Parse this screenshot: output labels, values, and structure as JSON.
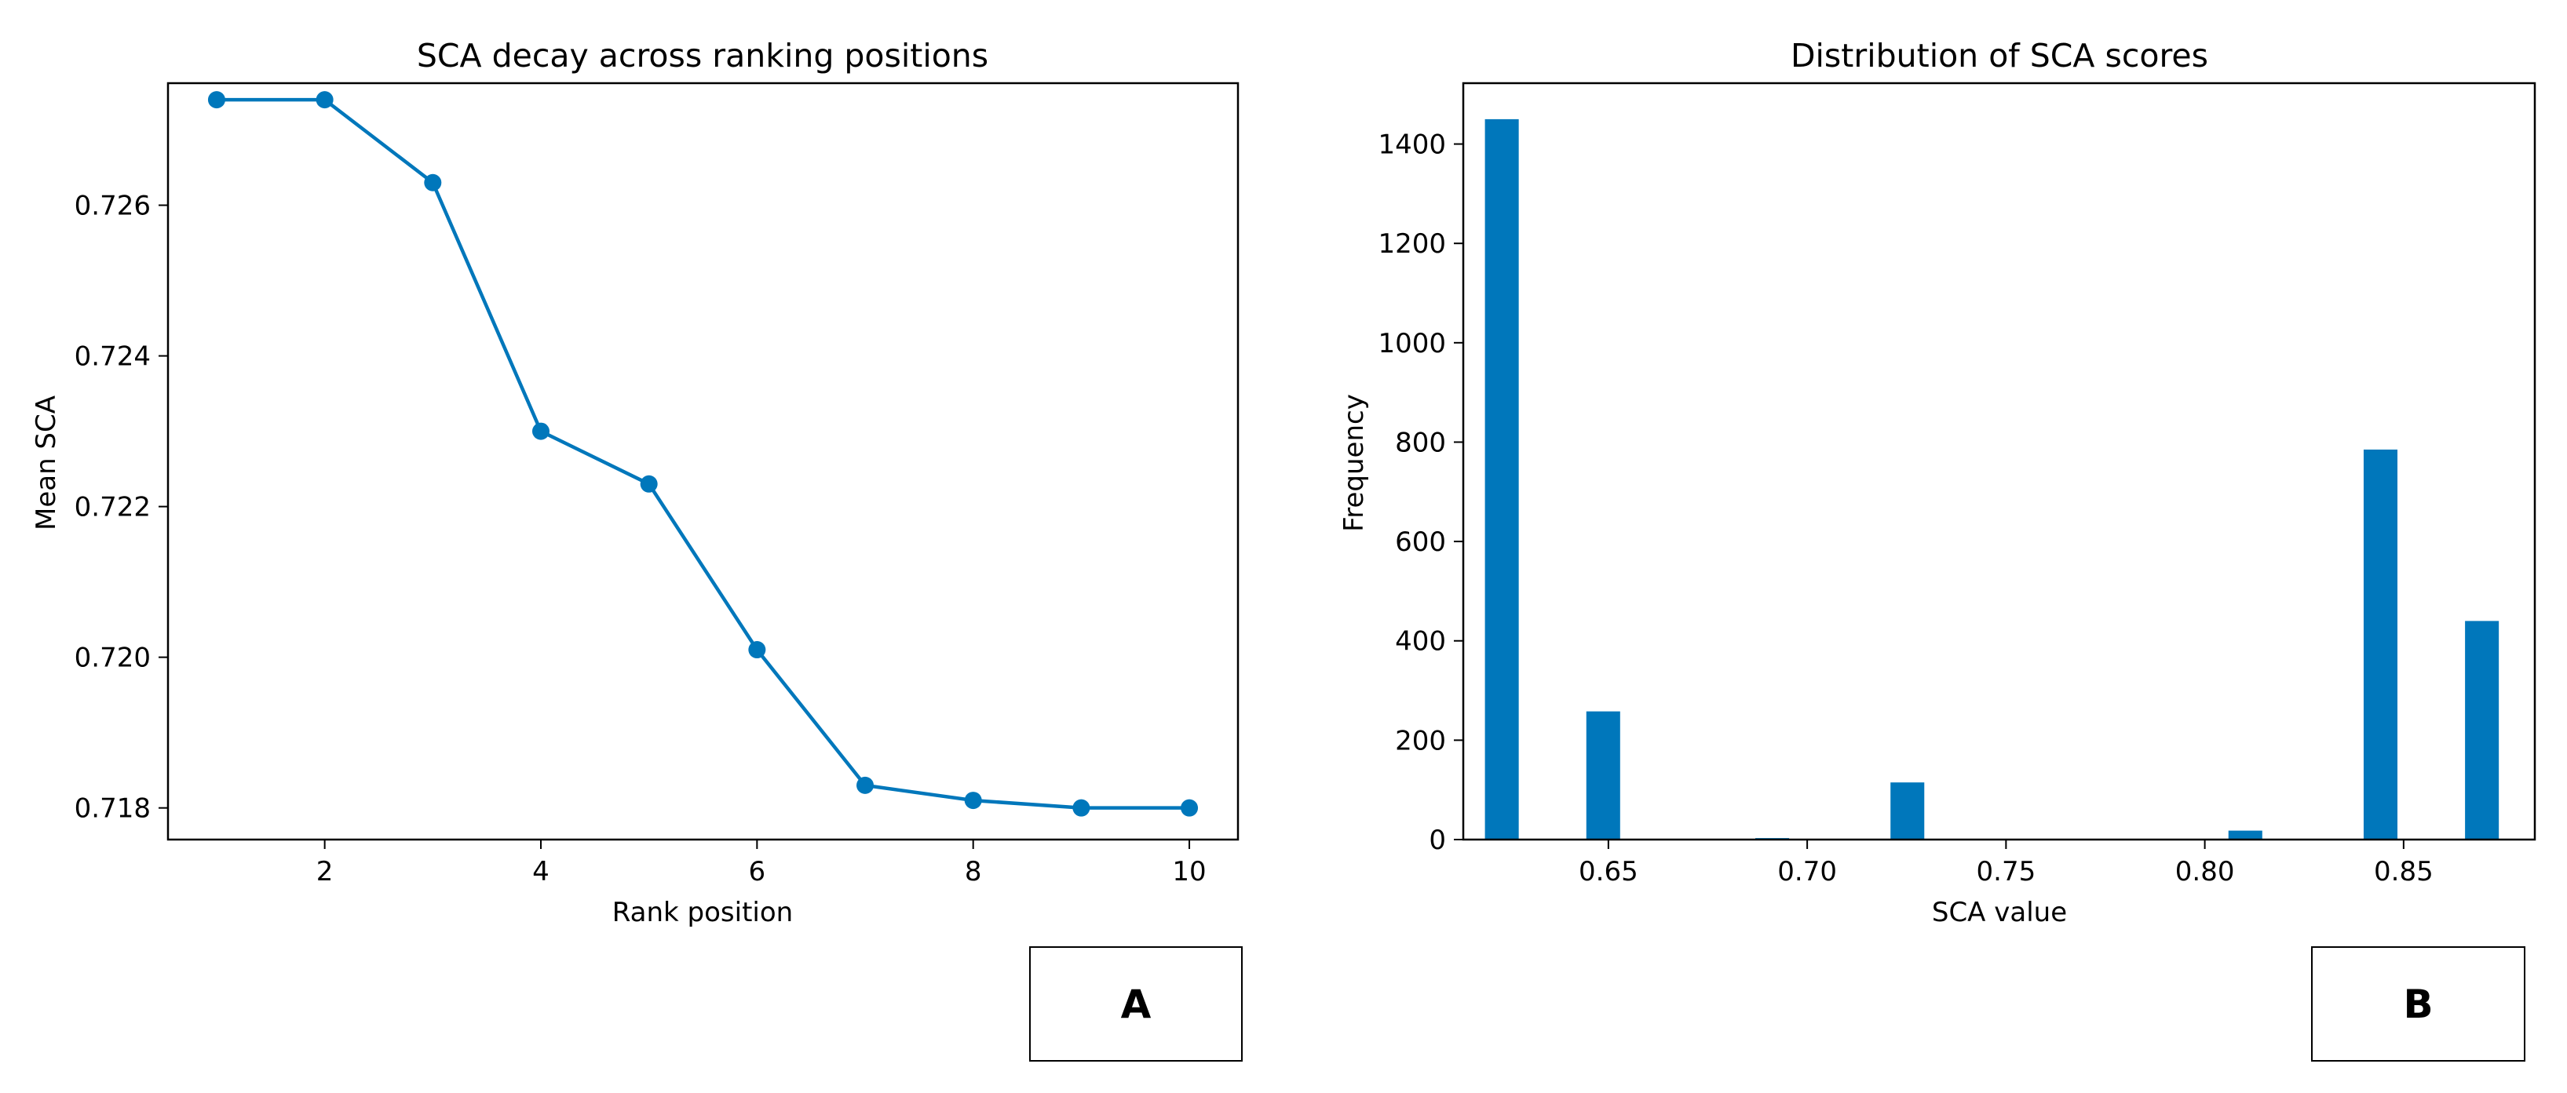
{
  "chart_data": [
    {
      "type": "line",
      "title": "SCA decay across ranking positions",
      "xlabel": "Rank position",
      "ylabel": "Mean SCA",
      "xlim": [
        0.55,
        10.45
      ],
      "ylim": [
        0.71758,
        0.72762
      ],
      "xticks": [
        2,
        4,
        6,
        8,
        10
      ],
      "xtick_labels": [
        "2",
        "4",
        "6",
        "8",
        "10"
      ],
      "yticks": [
        0.718,
        0.72,
        0.722,
        0.724,
        0.726
      ],
      "ytick_labels": [
        "0.718",
        "0.720",
        "0.722",
        "0.724",
        "0.726"
      ],
      "grid": false,
      "color": "#0077bb",
      "marker": "circle",
      "series": [
        {
          "x": [
            1,
            2,
            3,
            4,
            5,
            6,
            7,
            8,
            9,
            10
          ],
          "y": [
            0.7274,
            0.7274,
            0.7263,
            0.723,
            0.7223,
            0.7201,
            0.7183,
            0.7181,
            0.718,
            0.718
          ]
        }
      ]
    },
    {
      "type": "bar",
      "title": "Distribution of SCA scores",
      "xlabel": "SCA value",
      "ylabel": "Frequency",
      "xlim": [
        0.6135,
        0.883
      ],
      "ylim": [
        0,
        1522.5
      ],
      "xticks": [
        0.65,
        0.7,
        0.75,
        0.8,
        0.85
      ],
      "xtick_labels": [
        "0.65",
        "0.70",
        "0.75",
        "0.80",
        "0.85"
      ],
      "yticks": [
        0,
        200,
        400,
        600,
        800,
        1000,
        1200,
        1400
      ],
      "ytick_labels": [
        "0",
        "200",
        "400",
        "600",
        "800",
        "1000",
        "1200",
        "1400"
      ],
      "grid": false,
      "color": "#0077bb",
      "bin_width": 0.0085,
      "bins": [
        {
          "x": 0.6232,
          "value": 1450
        },
        {
          "x": 0.6487,
          "value": 258
        },
        {
          "x": 0.6912,
          "value": 3
        },
        {
          "x": 0.7252,
          "value": 115
        },
        {
          "x": 0.8102,
          "value": 18
        },
        {
          "x": 0.8442,
          "value": 785
        },
        {
          "x": 0.8697,
          "value": 440
        }
      ]
    }
  ],
  "panel_labels": [
    "A",
    "B"
  ]
}
